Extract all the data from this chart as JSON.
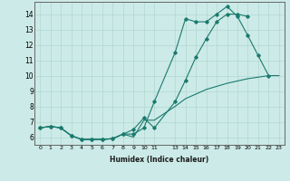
{
  "xlabel": "Humidex (Indice chaleur)",
  "xlim": [
    -0.5,
    23.5
  ],
  "ylim": [
    5.5,
    14.8
  ],
  "xticks": [
    0,
    1,
    2,
    3,
    4,
    5,
    6,
    7,
    8,
    9,
    10,
    11,
    13,
    14,
    15,
    16,
    17,
    18,
    19,
    20,
    21,
    22,
    23
  ],
  "yticks": [
    6,
    7,
    8,
    9,
    10,
    11,
    12,
    13,
    14
  ],
  "bg_color": "#cceae7",
  "line_color": "#1a7a6e",
  "line1_x": [
    0,
    1,
    2,
    3,
    4,
    5,
    6,
    7,
    8,
    9,
    10,
    11,
    13,
    14,
    15,
    16,
    17,
    18,
    19,
    20,
    21,
    22
  ],
  "line1_y": [
    6.6,
    6.7,
    6.6,
    6.1,
    5.85,
    5.85,
    5.85,
    5.9,
    6.2,
    6.2,
    6.6,
    8.3,
    11.5,
    13.7,
    13.5,
    13.5,
    14.0,
    14.5,
    13.85,
    12.6,
    11.3,
    10.0
  ],
  "line2_x": [
    0,
    1,
    2,
    3,
    4,
    5,
    6,
    7,
    8,
    9,
    10,
    11,
    13,
    14,
    15,
    16,
    17,
    18,
    19,
    20
  ],
  "line2_y": [
    6.6,
    6.7,
    6.6,
    6.1,
    5.85,
    5.85,
    5.85,
    5.9,
    6.2,
    6.5,
    7.25,
    6.6,
    8.3,
    9.7,
    11.2,
    12.4,
    13.5,
    14.0,
    14.0,
    13.85
  ],
  "line3_x": [
    0,
    1,
    2,
    3,
    4,
    5,
    6,
    7,
    8,
    9,
    10,
    11,
    13,
    14,
    15,
    16,
    17,
    18,
    19,
    20,
    21,
    22,
    23
  ],
  "line3_y": [
    6.6,
    6.7,
    6.6,
    6.1,
    5.85,
    5.85,
    5.85,
    5.9,
    6.2,
    6.0,
    7.1,
    7.1,
    8.0,
    8.5,
    8.8,
    9.1,
    9.3,
    9.5,
    9.65,
    9.8,
    9.9,
    10.0,
    10.0
  ]
}
